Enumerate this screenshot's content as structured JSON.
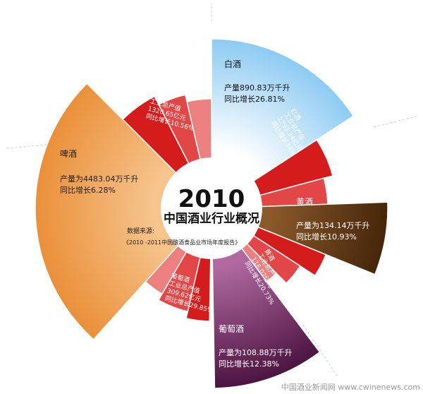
{
  "chart_data": {
    "type": "pie",
    "subtype": "polar-area infographic",
    "title_year": "2010",
    "title": "中国酒业行业概况",
    "source_label": "数据来源:",
    "source_text": "《2010 -2011中国酿酒食品业市场年度报告》",
    "categories": [
      "白酒",
      "黄酒",
      "葡萄酒",
      "啤酒"
    ],
    "series": [
      {
        "name": "产量",
        "values": [
          890.83,
          134.14,
          108.88,
          4483.04
        ],
        "growth_pct": [
          26.81,
          10.93,
          12.38,
          6.28
        ]
      },
      {
        "name": "工业总产值",
        "values": [
          2793.34,
          116.02,
          309.62,
          1320.65
        ],
        "growth_pct": [
          34,
          20.73,
          29.85,
          10.56
        ]
      }
    ],
    "segments": [
      {
        "name": "白酒",
        "line1": "产量890.83万千升",
        "line2": "同比增长26.81%",
        "color": "#8fcdf2"
      },
      {
        "name": "黄酒",
        "line1": "产量为134.14万千升",
        "line2": "同比增长10.93%",
        "color": "#4a2a0c"
      },
      {
        "name": "葡萄酒",
        "line1": "产量为108.88万千升",
        "line2": "同比增长12.38%",
        "color": "#4b0f3b"
      },
      {
        "name": "啤酒",
        "line1": "产量为4483.04万千升",
        "line2": "同比增长6.28%",
        "color": "#eb9238"
      }
    ],
    "red_labels": [
      {
        "lines": [
          "白酒",
          "工业总产值",
          "2793.34亿元",
          "同比增长34%"
        ]
      },
      {
        "lines": [
          "黄酒",
          "工业总产值接近",
          "116.02亿元",
          "同比增长20.73%"
        ]
      },
      {
        "lines": [
          "葡萄酒",
          "工业总产值",
          "309.62亿元",
          "同比增长29.85%"
        ]
      },
      {
        "lines": [
          "啤酒",
          "工业总产值",
          "1320.65亿元",
          "同比增长10.56%"
        ]
      }
    ],
    "colors": {
      "red_dark": "#d41c1c",
      "red_mid": "#e24646",
      "red_light": "#ec7f7f"
    }
  },
  "watermark": "中国酒业新闻网 www.cwinenews.com"
}
